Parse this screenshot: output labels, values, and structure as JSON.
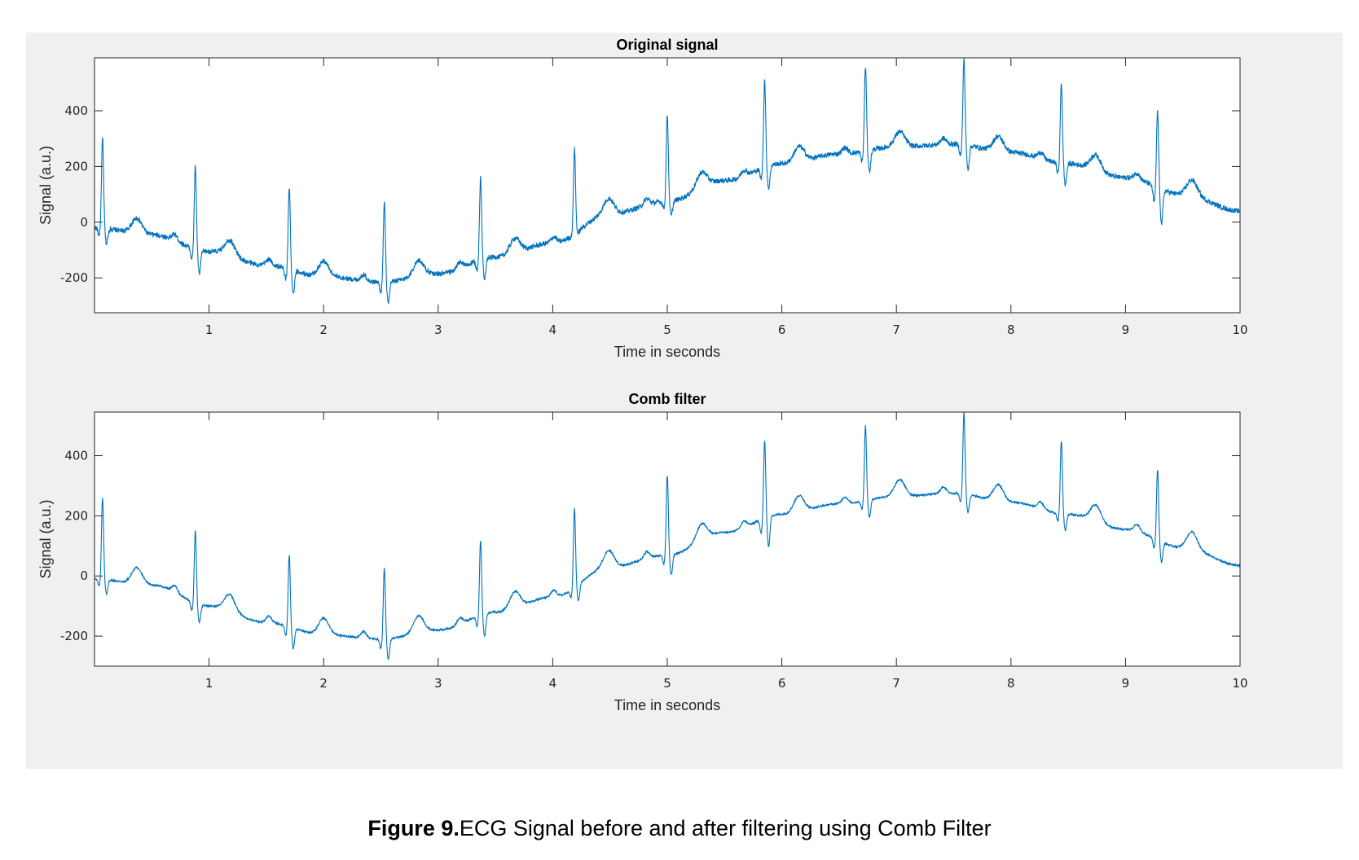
{
  "caption": {
    "label": "Figure 9.",
    "text": "ECG Signal before and after filtering using Comb Filter"
  },
  "colors": {
    "line": "#0072bd",
    "panel_bg": "#f0f0f0",
    "axes_bg": "#ffffff"
  },
  "chart_data": [
    {
      "type": "line",
      "title": "Original signal",
      "xlabel": "Time in seconds",
      "ylabel": "Signal (a.u.)",
      "xlim": [
        0,
        10
      ],
      "ylim": [
        -325,
        590
      ],
      "xticks": [
        1,
        2,
        3,
        4,
        5,
        6,
        7,
        8,
        9,
        10
      ],
      "xtick_labels": [
        "1",
        "2",
        "3",
        "4",
        "5",
        "6",
        "7",
        "8",
        "9",
        "10"
      ],
      "yticks": [
        -200,
        0,
        200,
        400
      ],
      "ytick_labels": [
        "-200",
        "0",
        "200",
        "400"
      ],
      "grid": false,
      "series": [
        {
          "noise": 9,
          "baseline_t": [
            0,
            0.5,
            1,
            1.5,
            2,
            2.5,
            3,
            3.5,
            4,
            4.5,
            5,
            5.5,
            6,
            6.5,
            7,
            7.5,
            8,
            8.5,
            9,
            9.5,
            10
          ],
          "baseline_v": [
            -20,
            -45,
            -105,
            -155,
            -195,
            -215,
            -185,
            -125,
            -75,
            30,
            75,
            150,
            210,
            245,
            270,
            280,
            250,
            210,
            160,
            100,
            40
          ],
          "beats_t": [
            0.07,
            0.88,
            1.7,
            2.53,
            3.37,
            4.19,
            5.0,
            5.85,
            6.73,
            7.59,
            8.44,
            9.28
          ],
          "beats_peak": [
            300,
            200,
            125,
            70,
            160,
            265,
            385,
            510,
            560,
            590,
            500,
            400
          ],
          "beats_trough": [
            -95,
            -210,
            -285,
            -320,
            -225,
            -50,
            5,
            90,
            155,
            165,
            110,
            -40
          ]
        }
      ]
    },
    {
      "type": "line",
      "title": "Comb filter",
      "xlabel": "Time in seconds",
      "ylabel": "Signal (a.u.)",
      "xlim": [
        0,
        10
      ],
      "ylim": [
        -300,
        545
      ],
      "xticks": [
        1,
        2,
        3,
        4,
        5,
        6,
        7,
        8,
        9,
        10
      ],
      "xtick_labels": [
        "1",
        "2",
        "3",
        "4",
        "5",
        "6",
        "7",
        "8",
        "9",
        "10"
      ],
      "yticks": [
        -200,
        0,
        200,
        400
      ],
      "ytick_labels": [
        "-200",
        "0",
        "200",
        "400"
      ],
      "grid": false,
      "series": [
        {
          "noise": 3,
          "baseline_t": [
            0,
            0.5,
            1,
            1.5,
            2,
            2.5,
            3,
            3.5,
            4,
            4.5,
            5,
            5.5,
            6,
            6.5,
            7,
            7.5,
            8,
            8.5,
            9,
            9.5,
            10
          ],
          "baseline_v": [
            -10,
            -30,
            -100,
            -155,
            -195,
            -210,
            -180,
            -120,
            -70,
            30,
            70,
            145,
            205,
            240,
            265,
            275,
            245,
            205,
            155,
            95,
            35
          ],
          "beats_t": [
            0.07,
            0.88,
            1.7,
            2.53,
            3.37,
            4.19,
            5.0,
            5.85,
            6.73,
            7.59,
            8.44,
            9.28
          ],
          "beats_peak": [
            260,
            150,
            70,
            25,
            120,
            225,
            335,
            450,
            500,
            545,
            450,
            355
          ],
          "beats_trough": [
            -75,
            -170,
            -260,
            -300,
            -230,
            -110,
            -20,
            60,
            175,
            195,
            135,
            30
          ]
        }
      ]
    }
  ]
}
